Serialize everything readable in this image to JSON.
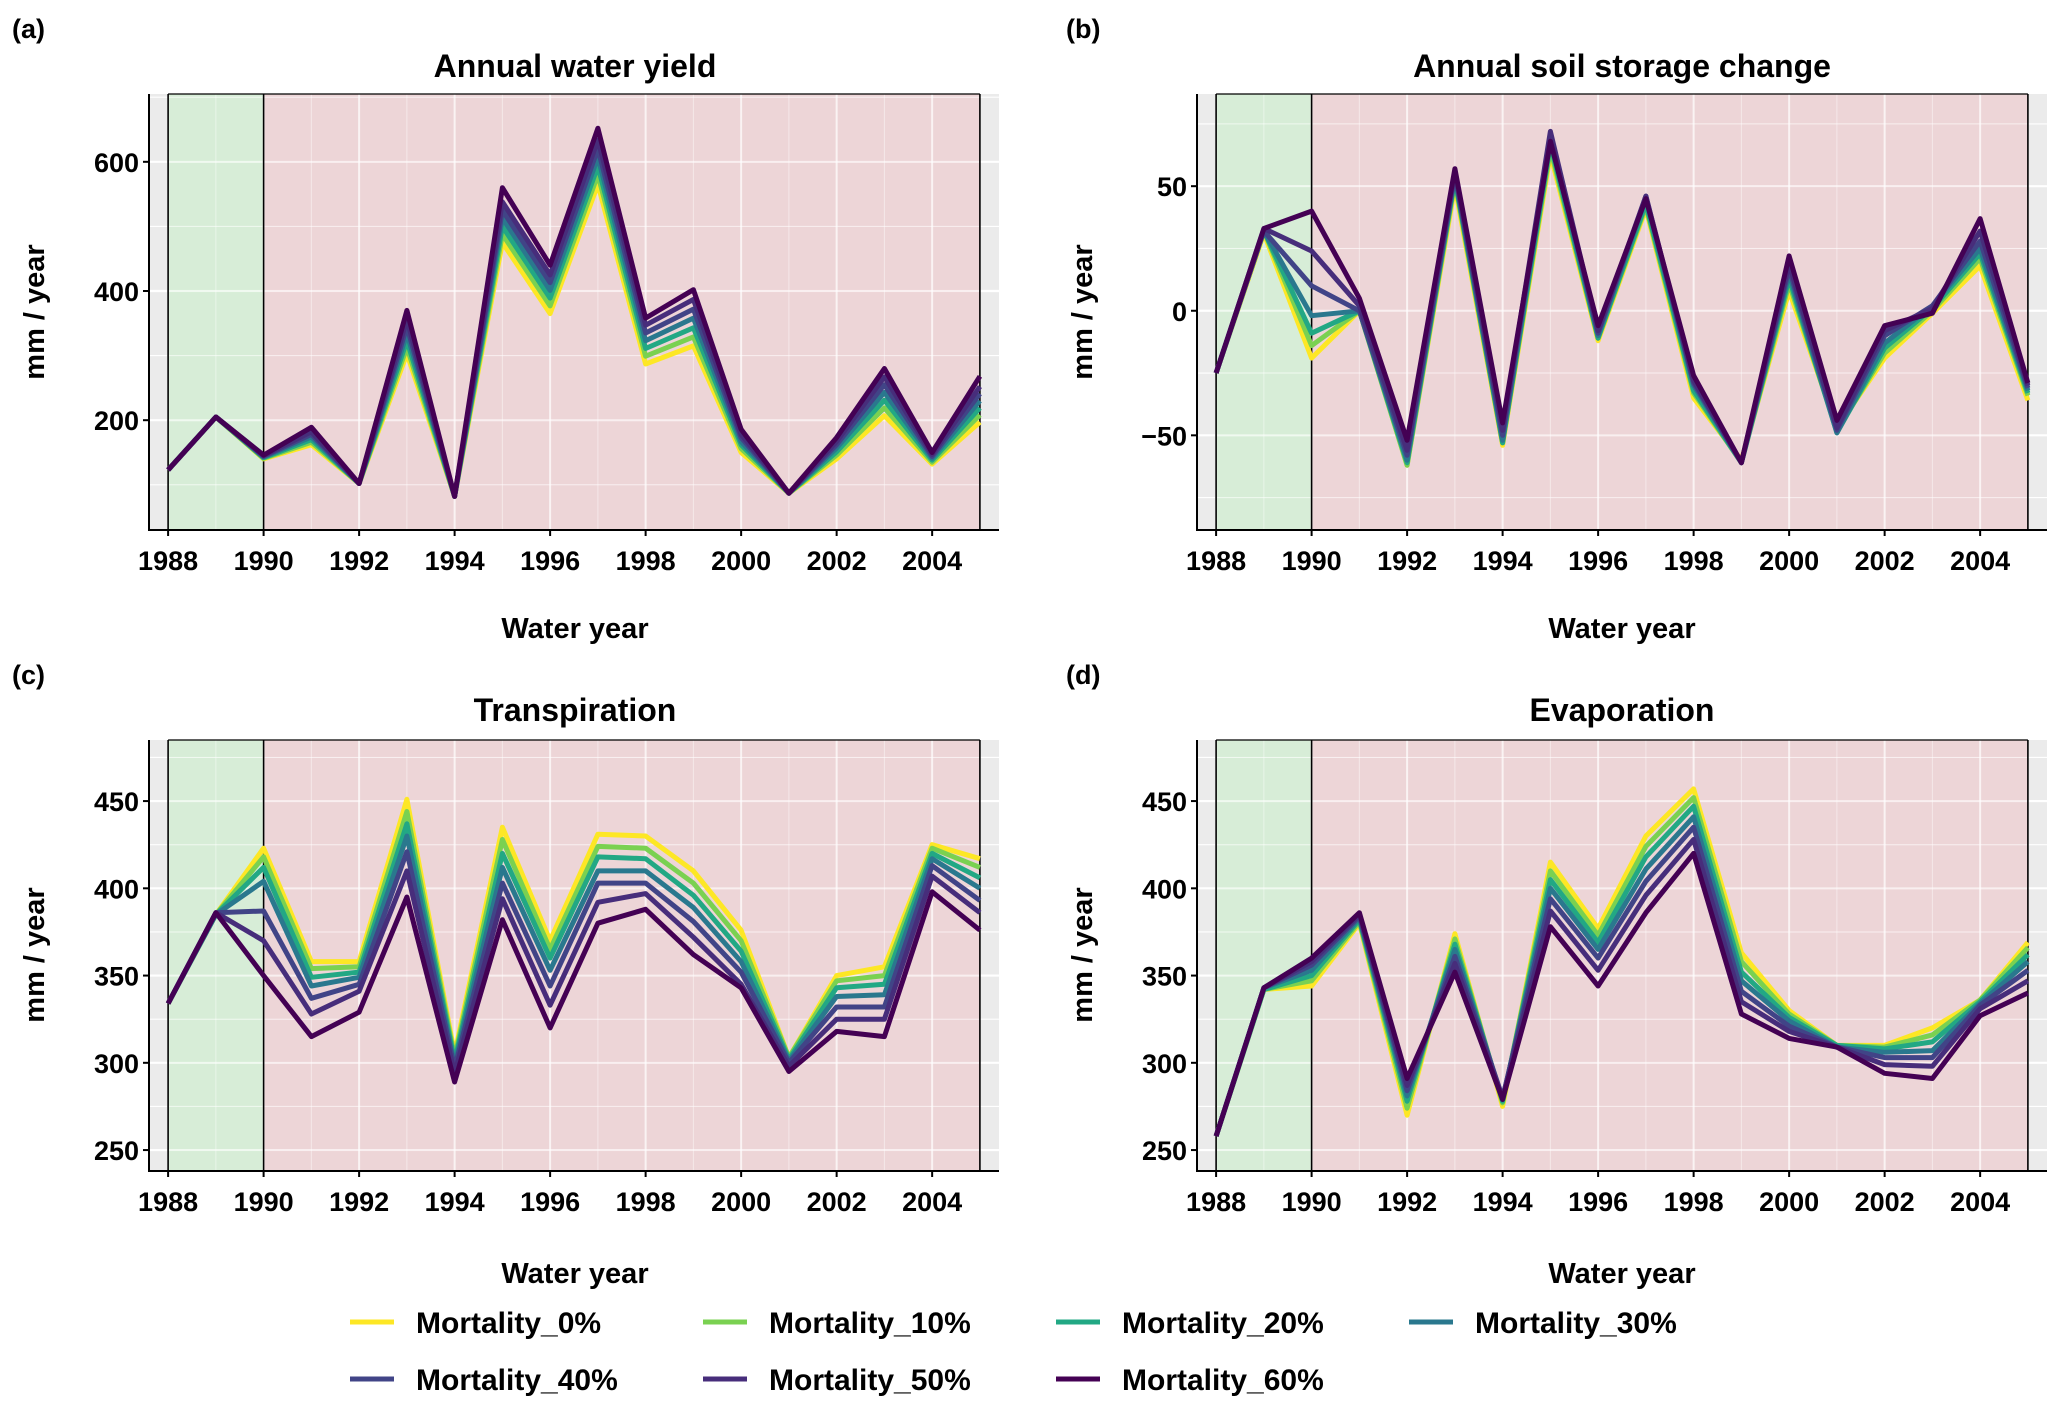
{
  "figure": {
    "legend": {
      "position": "bottom",
      "entries": [
        {
          "label": "Mortality_0%",
          "color": "#FDE725"
        },
        {
          "label": "Mortality_10%",
          "color": "#7AD151"
        },
        {
          "label": "Mortality_20%",
          "color": "#22A884"
        },
        {
          "label": "Mortality_30%",
          "color": "#2A788E"
        },
        {
          "label": "Mortality_40%",
          "color": "#414487"
        },
        {
          "label": "Mortality_50%",
          "color": "#472D7B"
        },
        {
          "label": "Mortality_60%",
          "color": "#440154"
        }
      ]
    },
    "shading": {
      "green_period": [
        1988,
        1990
      ],
      "red_period": [
        1990,
        2005
      ],
      "green_color": "#d4edd4",
      "red_color": "#edd3d5",
      "panel_bg": "#ebebeb"
    }
  },
  "chart_data": [
    {
      "panel": "(a)",
      "type": "line",
      "title": "Annual water yield",
      "xlabel": "Water year",
      "ylabel": "mm / year",
      "x": [
        1988,
        1989,
        1990,
        1991,
        1992,
        1993,
        1994,
        1995,
        1996,
        1997,
        1998,
        1999,
        2000,
        2001,
        2002,
        2003,
        2004,
        2005
      ],
      "xticks": [
        "1988",
        "1990",
        "1992",
        "1994",
        "1996",
        "1998",
        "2000",
        "2002",
        "2004"
      ],
      "xlim": [
        1987.6,
        2005.4
      ],
      "yticks": [
        "200",
        "400",
        "600"
      ],
      "ytick_values": [
        200,
        400,
        600
      ],
      "ylim": [
        30,
        705
      ],
      "grid": true,
      "series": [
        {
          "name": "Mortality_0%",
          "values": [
            123,
            205,
            140,
            162,
            102,
            303,
            82,
            475,
            365,
            565,
            287,
            315,
            150,
            87,
            140,
            207,
            132,
            197
          ]
        },
        {
          "name": "Mortality_10%",
          "values": [
            123,
            205,
            141,
            166,
            102,
            313,
            82,
            488,
            377,
            580,
            299,
            329,
            156,
            87,
            146,
            219,
            135,
            208
          ]
        },
        {
          "name": "Mortality_20%",
          "values": [
            123,
            205,
            142,
            170,
            102,
            323,
            82,
            500,
            389,
            593,
            311,
            343,
            162,
            87,
            151,
            231,
            138,
            219
          ]
        },
        {
          "name": "Mortality_30%",
          "values": [
            123,
            205,
            143,
            174,
            102,
            334,
            82,
            513,
            401,
            607,
            323,
            358,
            167,
            87,
            157,
            243,
            141,
            230
          ]
        },
        {
          "name": "Mortality_40%",
          "values": [
            123,
            205,
            144,
            178,
            102,
            345,
            82,
            525,
            413,
            620,
            335,
            372,
            173,
            87,
            162,
            255,
            144,
            241
          ]
        },
        {
          "name": "Mortality_50%",
          "values": [
            123,
            205,
            145,
            182,
            102,
            356,
            82,
            538,
            425,
            634,
            347,
            387,
            178,
            87,
            167,
            267,
            147,
            252
          ]
        },
        {
          "name": "Mortality_60%",
          "values": [
            123,
            205,
            146,
            189,
            102,
            370,
            82,
            560,
            440,
            652,
            358,
            402,
            186,
            87,
            173,
            280,
            150,
            268
          ]
        }
      ]
    },
    {
      "panel": "(b)",
      "type": "line",
      "title": "Annual soil storage change",
      "xlabel": "Water year",
      "ylabel": "mm / year",
      "x": [
        1988,
        1989,
        1990,
        1991,
        1992,
        1993,
        1994,
        1995,
        1996,
        1997,
        1998,
        1999,
        2000,
        2001,
        2002,
        2003,
        2004,
        2005
      ],
      "xticks": [
        "1988",
        "1990",
        "1992",
        "1994",
        "1996",
        "1998",
        "2000",
        "2002",
        "2004"
      ],
      "xlim": [
        1987.6,
        2005.4
      ],
      "yticks": [
        "−50",
        "0",
        "50"
      ],
      "ytick_values": [
        -50,
        0,
        50
      ],
      "ylim": [
        -88,
        87
      ],
      "grid": true,
      "series": [
        {
          "name": "Mortality_0%",
          "values": [
            -25,
            31,
            -19,
            0,
            -62,
            50,
            -54,
            63,
            -12,
            41,
            -35,
            -60,
            8,
            -47,
            -19,
            -1,
            18,
            -36
          ]
        },
        {
          "name": "Mortality_10%",
          "values": [
            -25,
            32,
            -14,
            0,
            -62,
            52,
            -53,
            65,
            -11,
            42,
            -33,
            -61,
            11,
            -48,
            -17,
            0,
            21,
            -34
          ]
        },
        {
          "name": "Mortality_20%",
          "values": [
            -25,
            32,
            -9,
            0,
            -61,
            53,
            -53,
            67,
            -11,
            43,
            -32,
            -61,
            13,
            -49,
            -15,
            1,
            23,
            -33
          ]
        },
        {
          "name": "Mortality_30%",
          "values": [
            -25,
            32,
            -2,
            0,
            -60,
            54,
            -52,
            69,
            -10,
            45,
            -30,
            -61,
            15,
            -49,
            -13,
            2,
            25,
            -32
          ]
        },
        {
          "name": "Mortality_40%",
          "values": [
            -25,
            32,
            10,
            0,
            -58,
            55,
            -50,
            71,
            -9,
            46,
            -29,
            -61,
            17,
            -48,
            -10,
            2,
            28,
            -31
          ]
        },
        {
          "name": "Mortality_50%",
          "values": [
            -25,
            33,
            24,
            2,
            -56,
            56,
            -48,
            72,
            -8,
            46,
            -28,
            -61,
            19,
            -47,
            -8,
            1,
            32,
            -30
          ]
        },
        {
          "name": "Mortality_60%",
          "values": [
            -25,
            33,
            40,
            5,
            -52,
            57,
            -45,
            68,
            -6,
            45,
            -26,
            -61,
            22,
            -44,
            -6,
            -1,
            37,
            -29
          ]
        }
      ]
    },
    {
      "panel": "(c)",
      "type": "line",
      "title": "Transpiration",
      "xlabel": "Water year",
      "ylabel": "mm / year",
      "x": [
        1988,
        1989,
        1990,
        1991,
        1992,
        1993,
        1994,
        1995,
        1996,
        1997,
        1998,
        1999,
        2000,
        2001,
        2002,
        2003,
        2004,
        2005
      ],
      "xticks": [
        "1988",
        "1990",
        "1992",
        "1994",
        "1996",
        "1998",
        "2000",
        "2002",
        "2004"
      ],
      "xlim": [
        1987.6,
        2005.4
      ],
      "yticks": [
        "250",
        "300",
        "350",
        "400",
        "450"
      ],
      "ytick_values": [
        250,
        300,
        350,
        400,
        450
      ],
      "ylim": [
        238,
        485
      ],
      "grid": true,
      "series": [
        {
          "name": "Mortality_0%",
          "values": [
            334,
            385,
            423,
            358,
            358,
            451,
            305,
            435,
            370,
            431,
            430,
            410,
            376,
            303,
            350,
            355,
            425,
            417
          ]
        },
        {
          "name": "Mortality_10%",
          "values": [
            334,
            385,
            418,
            354,
            355,
            444,
            303,
            428,
            365,
            424,
            423,
            403,
            370,
            303,
            347,
            350,
            423,
            412
          ]
        },
        {
          "name": "Mortality_20%",
          "values": [
            334,
            385,
            412,
            349,
            352,
            437,
            301,
            420,
            360,
            418,
            417,
            396,
            364,
            302,
            343,
            345,
            420,
            406
          ]
        },
        {
          "name": "Mortality_30%",
          "values": [
            334,
            385,
            404,
            344,
            349,
            430,
            299,
            412,
            353,
            410,
            410,
            389,
            358,
            301,
            338,
            339,
            417,
            400
          ]
        },
        {
          "name": "Mortality_40%",
          "values": [
            334,
            386,
            387,
            337,
            345,
            421,
            297,
            403,
            344,
            403,
            403,
            381,
            352,
            300,
            332,
            332,
            413,
            393
          ]
        },
        {
          "name": "Mortality_50%",
          "values": [
            334,
            386,
            370,
            328,
            341,
            410,
            294,
            394,
            333,
            392,
            397,
            372,
            345,
            298,
            325,
            325,
            407,
            386
          ]
        },
        {
          "name": "Mortality_60%",
          "values": [
            334,
            386,
            350,
            315,
            329,
            395,
            289,
            382,
            320,
            380,
            388,
            362,
            343,
            295,
            318,
            315,
            398,
            376
          ]
        }
      ]
    },
    {
      "panel": "(d)",
      "type": "line",
      "title": "Evaporation",
      "xlabel": "Water year",
      "ylabel": "mm / year",
      "x": [
        1988,
        1989,
        1990,
        1991,
        1992,
        1993,
        1994,
        1995,
        1996,
        1997,
        1998,
        1999,
        2000,
        2001,
        2002,
        2003,
        2004,
        2005
      ],
      "xticks": [
        "1988",
        "1990",
        "1992",
        "1994",
        "1996",
        "1998",
        "2000",
        "2002",
        "2004"
      ],
      "xlim": [
        1987.6,
        2005.4
      ],
      "yticks": [
        "250",
        "300",
        "350",
        "400",
        "450"
      ],
      "ytick_values": [
        250,
        300,
        350,
        400,
        450
      ],
      "ylim": [
        238,
        485
      ],
      "grid": true,
      "series": [
        {
          "name": "Mortality_0%",
          "values": [
            258,
            342,
            344,
            380,
            270,
            374,
            275,
            415,
            377,
            430,
            457,
            363,
            330,
            310,
            310,
            320,
            336,
            369
          ]
        },
        {
          "name": "Mortality_10%",
          "values": [
            258,
            342,
            347,
            381,
            274,
            371,
            277,
            410,
            373,
            424,
            452,
            358,
            328,
            310,
            309,
            316,
            336,
            366
          ]
        },
        {
          "name": "Mortality_20%",
          "values": [
            258,
            342,
            350,
            382,
            278,
            368,
            278,
            405,
            369,
            418,
            447,
            352,
            326,
            310,
            308,
            312,
            335,
            362
          ]
        },
        {
          "name": "Mortality_30%",
          "values": [
            258,
            343,
            353,
            383,
            281,
            365,
            279,
            400,
            365,
            411,
            441,
            347,
            324,
            309,
            306,
            307,
            334,
            358
          ]
        },
        {
          "name": "Mortality_40%",
          "values": [
            258,
            343,
            356,
            384,
            284,
            361,
            280,
            394,
            360,
            404,
            435,
            341,
            321,
            309,
            303,
            303,
            333,
            353
          ]
        },
        {
          "name": "Mortality_50%",
          "values": [
            258,
            343,
            358,
            385,
            287,
            357,
            280,
            387,
            353,
            396,
            428,
            335,
            318,
            309,
            299,
            298,
            331,
            347
          ]
        },
        {
          "name": "Mortality_60%",
          "values": [
            258,
            343,
            360,
            386,
            291,
            352,
            279,
            378,
            344,
            386,
            420,
            328,
            314,
            309,
            294,
            291,
            327,
            340
          ]
        }
      ]
    }
  ]
}
